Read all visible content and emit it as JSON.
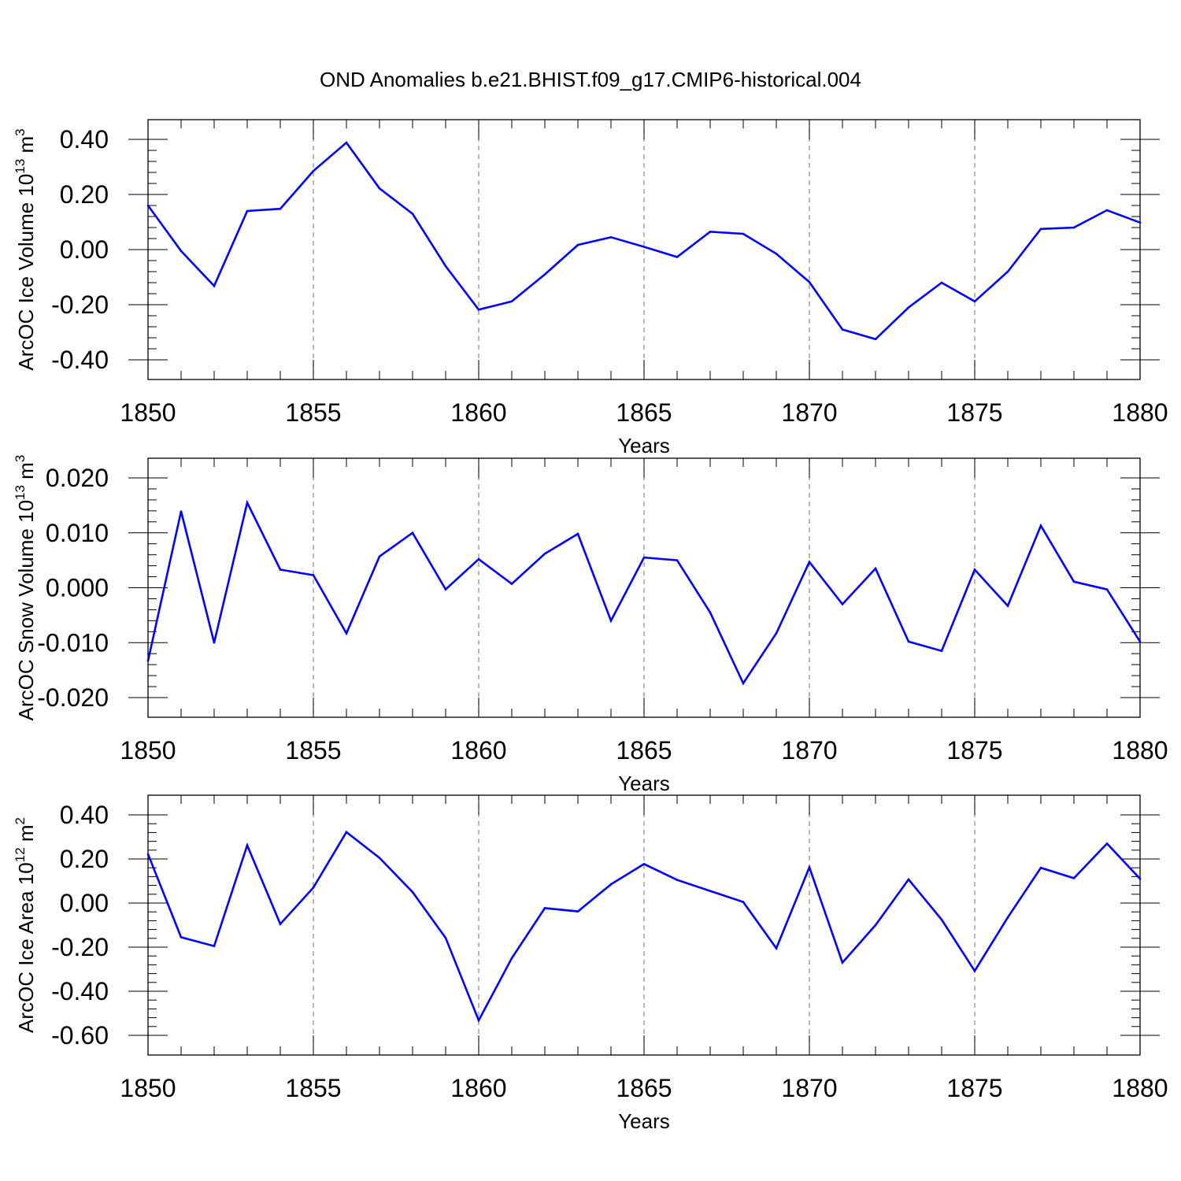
{
  "title": "OND Anomalies b.e21.BHIST.f09_g17.CMIP6-historical.004",
  "colors": {
    "line": "#0000ff",
    "axis": "#000000",
    "grid": "#888888"
  },
  "chart_data": [
    {
      "type": "line",
      "xlabel": "Years",
      "ylabel": "ArcOC Ice Volume 10",
      "ylabel_sup": "13",
      "ylabel_unit": " m",
      "ylabel_unit_sup": "3",
      "xlim": [
        1850,
        1880
      ],
      "ylim": [
        -0.4,
        0.4
      ],
      "x_ticks": [
        1850,
        1855,
        1860,
        1865,
        1870,
        1875,
        1880
      ],
      "x_tick_labels": [
        "1850",
        "1855",
        "1860",
        "1865",
        "1870",
        "1875",
        "1880"
      ],
      "y_ticks": [
        -0.4,
        -0.2,
        0.0,
        0.2,
        0.4
      ],
      "y_tick_labels": [
        "-0.40",
        "-0.20",
        "0.00",
        "0.20",
        "0.40"
      ],
      "grid": "dashed vertical at major x ticks",
      "x": [
        1850,
        1851,
        1852,
        1853,
        1854,
        1855,
        1856,
        1857,
        1858,
        1859,
        1860,
        1861,
        1862,
        1863,
        1864,
        1865,
        1866,
        1867,
        1868,
        1869,
        1870,
        1871,
        1872,
        1873,
        1874,
        1875,
        1876,
        1877,
        1878,
        1879,
        1880
      ],
      "series": [
        {
          "values": [
            0.16,
            -0.005,
            -0.132,
            0.14,
            0.148,
            0.285,
            0.388,
            0.222,
            0.13,
            -0.06,
            -0.218,
            -0.188,
            -0.09,
            0.017,
            0.045,
            0.01,
            -0.027,
            0.065,
            0.057,
            -0.015,
            -0.118,
            -0.29,
            -0.325,
            -0.21,
            -0.12,
            -0.188,
            -0.08,
            0.075,
            0.08,
            0.143,
            0.098
          ]
        }
      ]
    },
    {
      "type": "line",
      "xlabel": "Years",
      "ylabel": "ArcOC Snow Volume 10",
      "ylabel_sup": "13",
      "ylabel_unit": " m",
      "ylabel_unit_sup": "3",
      "xlim": [
        1850,
        1880
      ],
      "ylim": [
        -0.02,
        0.02
      ],
      "x_ticks": [
        1850,
        1855,
        1860,
        1865,
        1870,
        1875,
        1880
      ],
      "x_tick_labels": [
        "1850",
        "1855",
        "1860",
        "1865",
        "1870",
        "1875",
        "1880"
      ],
      "y_ticks": [
        -0.02,
        -0.01,
        0.0,
        0.01,
        0.02
      ],
      "y_tick_labels": [
        "-0.020",
        "-0.010",
        "0.000",
        "0.010",
        "0.020"
      ],
      "grid": "dashed vertical at major x ticks",
      "x": [
        1850,
        1851,
        1852,
        1853,
        1854,
        1855,
        1856,
        1857,
        1858,
        1859,
        1860,
        1861,
        1862,
        1863,
        1864,
        1865,
        1866,
        1867,
        1868,
        1869,
        1870,
        1871,
        1872,
        1873,
        1874,
        1875,
        1876,
        1877,
        1878,
        1879,
        1880
      ],
      "series": [
        {
          "values": [
            -0.0133,
            0.0139,
            -0.01,
            0.0155,
            0.0033,
            0.0023,
            -0.0083,
            0.0057,
            0.01,
            -0.0003,
            0.0052,
            0.0007,
            0.0062,
            0.0098,
            -0.006,
            0.0055,
            0.005,
            -0.0045,
            -0.0174,
            -0.0083,
            0.0047,
            -0.003,
            0.0035,
            -0.0098,
            -0.0115,
            0.0033,
            -0.0033,
            0.0113,
            0.0011,
            -0.0003,
            -0.0098
          ]
        }
      ]
    },
    {
      "type": "line",
      "xlabel": "Years",
      "ylabel": "ArcOC Ice Area 10",
      "ylabel_sup": "12",
      "ylabel_unit": " m",
      "ylabel_unit_sup": "2",
      "xlim": [
        1850,
        1880
      ],
      "ylim": [
        -0.6,
        0.4
      ],
      "x_ticks": [
        1850,
        1855,
        1860,
        1865,
        1870,
        1875,
        1880
      ],
      "x_tick_labels": [
        "1850",
        "1855",
        "1860",
        "1865",
        "1870",
        "1875",
        "1880"
      ],
      "y_ticks": [
        -0.6,
        -0.4,
        -0.2,
        0.0,
        0.2,
        0.4
      ],
      "y_tick_labels": [
        "-0.60",
        "-0.40",
        "-0.20",
        "0.00",
        "0.20",
        "0.40"
      ],
      "grid": "dashed vertical at major x ticks",
      "x": [
        1850,
        1851,
        1852,
        1853,
        1854,
        1855,
        1856,
        1857,
        1858,
        1859,
        1860,
        1861,
        1862,
        1863,
        1864,
        1865,
        1866,
        1867,
        1868,
        1869,
        1870,
        1871,
        1872,
        1873,
        1874,
        1875,
        1876,
        1877,
        1878,
        1879,
        1880
      ],
      "series": [
        {
          "values": [
            0.222,
            -0.155,
            -0.195,
            0.262,
            -0.095,
            0.07,
            0.322,
            0.205,
            0.05,
            -0.158,
            -0.532,
            -0.25,
            -0.023,
            -0.038,
            0.085,
            0.177,
            0.105,
            0.055,
            0.005,
            -0.205,
            0.162,
            -0.27,
            -0.1,
            0.107,
            -0.075,
            -0.308,
            -0.065,
            0.16,
            0.113,
            0.27,
            0.11
          ]
        }
      ]
    }
  ]
}
